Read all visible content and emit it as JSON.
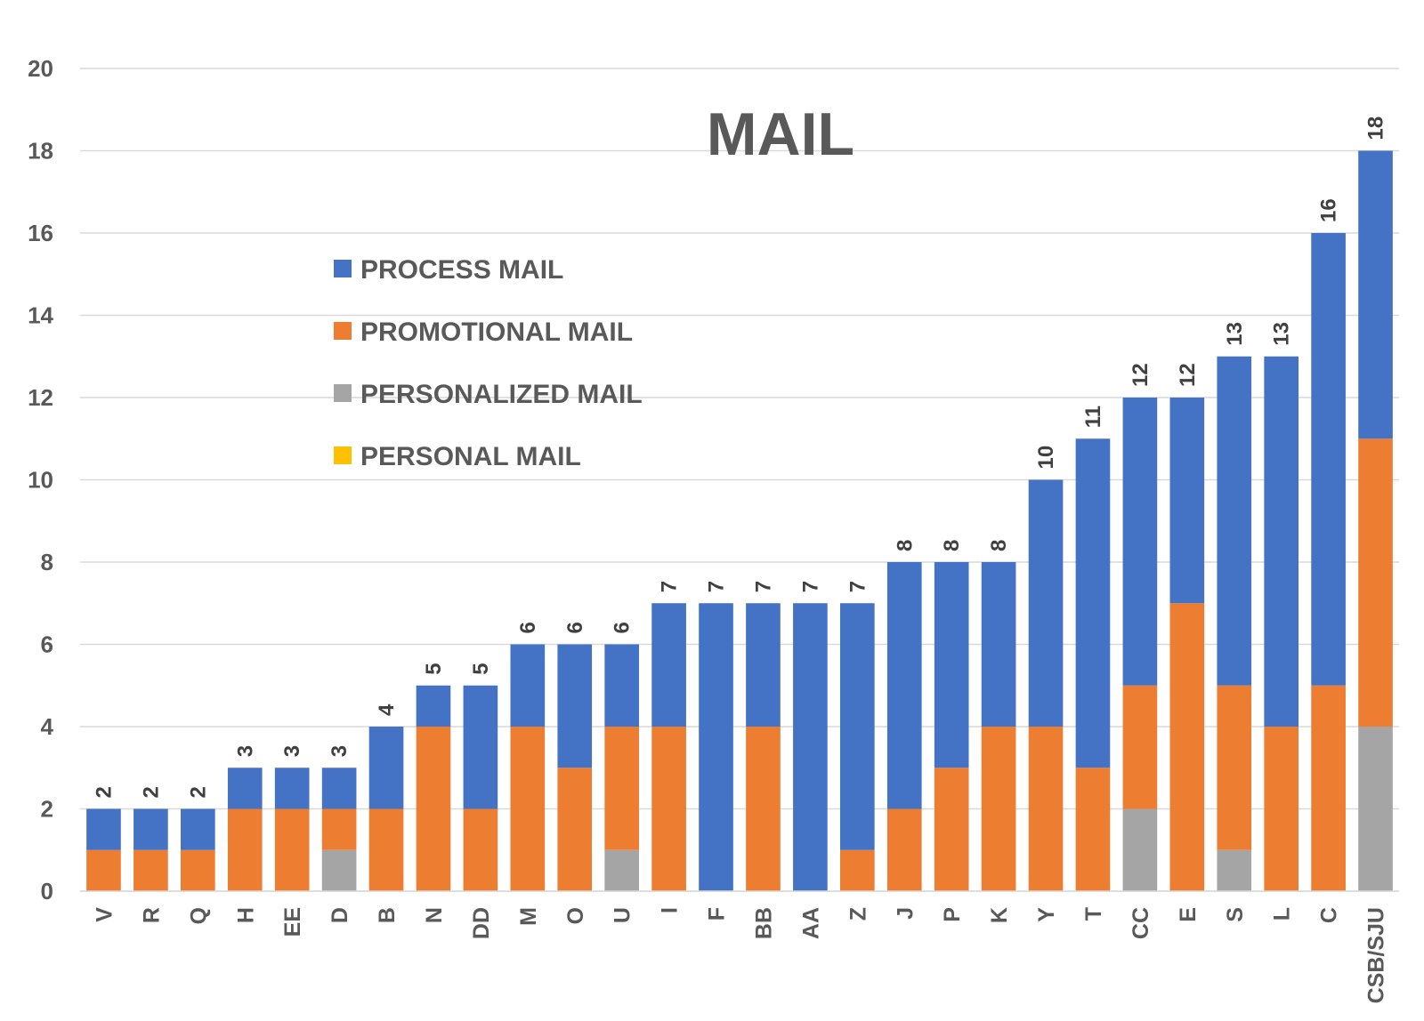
{
  "chart_data": {
    "type": "bar",
    "stacked": true,
    "title": "MAIL",
    "xlabel": "",
    "ylabel": "",
    "ylim": [
      0,
      20
    ],
    "yticks": [
      0,
      2,
      4,
      6,
      8,
      10,
      12,
      14,
      16,
      18,
      20
    ],
    "grid": true,
    "legend_position": "upper-left",
    "categories": [
      "V",
      "R",
      "Q",
      "H",
      "EE",
      "D",
      "B",
      "N",
      "DD",
      "M",
      "O",
      "U",
      "I",
      "F",
      "BB",
      "AA",
      "Z",
      "J",
      "P",
      "K",
      "Y",
      "T",
      "CC",
      "E",
      "S",
      "L",
      "C",
      "CSB/SJU"
    ],
    "series": [
      {
        "name": "PERSONAL MAIL",
        "color": "#FFC000",
        "values": [
          0,
          0,
          0,
          0,
          0,
          0,
          0,
          0,
          0,
          0,
          0,
          0,
          0,
          0,
          0,
          0,
          0,
          0,
          0,
          0,
          0,
          0,
          0,
          0,
          0,
          0,
          0,
          0
        ]
      },
      {
        "name": "PERSONALIZED MAIL",
        "color": "#A5A5A5",
        "values": [
          0,
          0,
          0,
          0,
          0,
          1,
          0,
          0,
          0,
          0,
          0,
          1,
          0,
          0,
          0,
          0,
          0,
          0,
          0,
          0,
          0,
          0,
          2,
          0,
          1,
          0,
          0,
          4
        ]
      },
      {
        "name": "PROMOTIONAL MAIL",
        "color": "#ED7D31",
        "values": [
          1,
          1,
          1,
          2,
          2,
          1,
          2,
          4,
          2,
          4,
          3,
          3,
          4,
          0,
          4,
          0,
          1,
          2,
          3,
          4,
          4,
          3,
          3,
          7,
          4,
          4,
          5,
          7
        ]
      },
      {
        "name": "PROCESS MAIL",
        "color": "#4472C4",
        "values": [
          1,
          1,
          1,
          1,
          1,
          1,
          2,
          1,
          3,
          2,
          3,
          2,
          3,
          7,
          3,
          7,
          6,
          6,
          5,
          4,
          6,
          8,
          7,
          5,
          8,
          9,
          11,
          7
        ]
      }
    ],
    "legend_order": [
      "PROCESS MAIL",
      "PROMOTIONAL MAIL",
      "PERSONALIZED MAIL",
      "PERSONAL MAIL"
    ],
    "totals": [
      2,
      2,
      2,
      3,
      3,
      3,
      4,
      5,
      5,
      6,
      6,
      6,
      7,
      7,
      7,
      7,
      7,
      8,
      8,
      8,
      10,
      11,
      12,
      12,
      13,
      13,
      16,
      18
    ]
  }
}
